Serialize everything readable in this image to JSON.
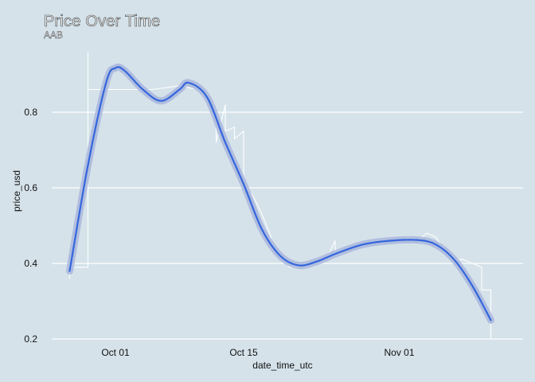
{
  "chart_data": {
    "type": "line",
    "title": "Price Over Time",
    "subtitle": "AAB",
    "xlabel": "date_time_utc",
    "ylabel": "price_usd",
    "x_tick_labels": [
      "Oct 01",
      "Oct 15",
      "Nov 01"
    ],
    "y_tick_labels": [
      "0.2",
      "0.4",
      "0.6",
      "0.8"
    ],
    "y_ticks": [
      0.2,
      0.4,
      0.6,
      0.8
    ],
    "ylim": [
      0.2,
      0.97
    ],
    "xlim": [
      "2023-09-25",
      "2023-11-13"
    ],
    "grid": true,
    "legend": "none",
    "series": [
      {
        "kind": "raw",
        "color": "#ffffff",
        "points": [
          [
            "2023-09-26",
            0.36
          ],
          [
            "2023-09-26",
            0.39
          ],
          [
            "2023-09-28",
            0.39
          ],
          [
            "2023-09-28",
            0.96
          ],
          [
            "2023-09-28",
            0.86
          ],
          [
            "2023-10-01",
            0.86
          ],
          [
            "2023-10-05",
            0.86
          ],
          [
            "2023-10-08",
            0.87
          ],
          [
            "2023-10-10",
            0.86
          ],
          [
            "2023-10-11",
            0.85
          ],
          [
            "2023-10-12",
            0.78
          ],
          [
            "2023-10-12",
            0.72
          ],
          [
            "2023-10-13",
            0.82
          ],
          [
            "2023-10-13",
            0.75
          ],
          [
            "2023-10-14",
            0.76
          ],
          [
            "2023-10-14",
            0.73
          ],
          [
            "2023-10-15",
            0.75
          ],
          [
            "2023-10-15",
            0.61
          ],
          [
            "2023-10-16",
            0.58
          ],
          [
            "2023-10-17",
            0.53
          ],
          [
            "2023-10-18",
            0.47
          ],
          [
            "2023-10-18",
            0.44
          ],
          [
            "2023-10-19",
            0.42
          ],
          [
            "2023-10-20",
            0.39
          ],
          [
            "2023-10-22",
            0.39
          ],
          [
            "2023-10-23",
            0.41
          ],
          [
            "2023-10-24",
            0.41
          ],
          [
            "2023-10-25",
            0.46
          ],
          [
            "2023-10-25",
            0.42
          ],
          [
            "2023-10-26",
            0.43
          ],
          [
            "2023-10-27",
            0.44
          ],
          [
            "2023-10-29",
            0.46
          ],
          [
            "2023-10-31",
            0.46
          ],
          [
            "2023-11-02",
            0.47
          ],
          [
            "2023-11-03",
            0.46
          ],
          [
            "2023-11-04",
            0.48
          ],
          [
            "2023-11-05",
            0.47
          ],
          [
            "2023-11-06",
            0.43
          ],
          [
            "2023-11-07",
            0.41
          ],
          [
            "2023-11-08",
            0.41
          ],
          [
            "2023-11-09",
            0.4
          ],
          [
            "2023-11-10",
            0.39
          ],
          [
            "2023-11-10",
            0.33
          ],
          [
            "2023-11-11",
            0.33
          ],
          [
            "2023-11-11",
            0.2
          ]
        ]
      },
      {
        "kind": "smooth",
        "color": "#3366dd",
        "band_color": "#a9b6dc",
        "points": [
          [
            "2023-09-26",
            0.38
          ],
          [
            "2023-09-28",
            0.66
          ],
          [
            "2023-09-30",
            0.88
          ],
          [
            "2023-10-01",
            0.917
          ],
          [
            "2023-10-02",
            0.91
          ],
          [
            "2023-10-04",
            0.86
          ],
          [
            "2023-10-06",
            0.83
          ],
          [
            "2023-10-08",
            0.86
          ],
          [
            "2023-10-09",
            0.878
          ],
          [
            "2023-10-11",
            0.84
          ],
          [
            "2023-10-13",
            0.72
          ],
          [
            "2023-10-15",
            0.61
          ],
          [
            "2023-10-17",
            0.49
          ],
          [
            "2023-10-19",
            0.42
          ],
          [
            "2023-10-21",
            0.395
          ],
          [
            "2023-10-23",
            0.405
          ],
          [
            "2023-10-25",
            0.425
          ],
          [
            "2023-10-28",
            0.45
          ],
          [
            "2023-10-31",
            0.46
          ],
          [
            "2023-11-03",
            0.462
          ],
          [
            "2023-11-05",
            0.45
          ],
          [
            "2023-11-07",
            0.41
          ],
          [
            "2023-11-09",
            0.34
          ],
          [
            "2023-11-11",
            0.25
          ]
        ]
      }
    ]
  }
}
